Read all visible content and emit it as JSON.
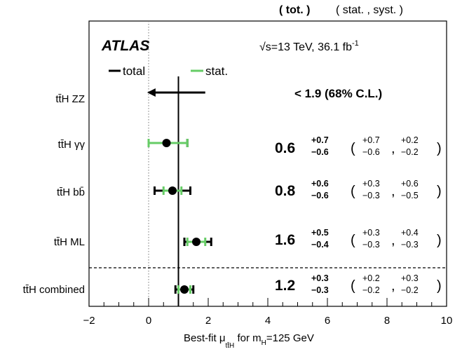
{
  "chart_data": {
    "type": "scatter",
    "header": {
      "tot_label": "( tot. )",
      "stat_syst_label": "( stat. , syst. )"
    },
    "experiment": "ATLAS",
    "energy_label": "√s=13 TeV, 36.1 fb",
    "lumi_exponent": "-1",
    "legend": {
      "total": "total",
      "stat": "stat."
    },
    "xlabel": "Best-fit μ",
    "xlabel_sub": "tt̄H",
    "xlabel_suffix": " for m",
    "xlabel_mh_sub": "H",
    "xlabel_end": "=125 GeV",
    "xlim": [
      -2,
      10
    ],
    "xticks": [
      "−2",
      "0",
      "2",
      "4",
      "6",
      "8",
      "10"
    ],
    "xtick_values": [
      -2,
      0,
      2,
      4,
      6,
      8,
      10
    ],
    "sm_reference": 1,
    "zero_reference": 0,
    "colors": {
      "total": "#000000",
      "stat": "#66cc66",
      "point": "#000000"
    },
    "channels": [
      {
        "label": "tt̄H ZZ",
        "limit": true,
        "limit_text": "< 1.9 (68% C.L.)",
        "limit_value": 1.9
      },
      {
        "label": "tt̄H γγ",
        "value": 0.6,
        "value_text": "0.6",
        "tot_up": 0.7,
        "tot_dn": 0.6,
        "stat_up": 0.7,
        "stat_dn": 0.6,
        "syst_up": 0.2,
        "syst_dn": 0.2,
        "tot_up_text": "+0.7",
        "tot_dn_text": "−0.6",
        "stat_up_text": "+0.7",
        "stat_dn_text": "−0.6",
        "syst_up_text": "+0.2",
        "syst_dn_text": "−0.2"
      },
      {
        "label": "tt̄H bb̄",
        "value": 0.8,
        "value_text": "0.8",
        "tot_up": 0.6,
        "tot_dn": 0.6,
        "stat_up": 0.3,
        "stat_dn": 0.3,
        "syst_up": 0.6,
        "syst_dn": 0.5,
        "tot_up_text": "+0.6",
        "tot_dn_text": "−0.6",
        "stat_up_text": "+0.3",
        "stat_dn_text": "−0.3",
        "syst_up_text": "+0.6",
        "syst_dn_text": "−0.5"
      },
      {
        "label": "tt̄H ML",
        "value": 1.6,
        "value_text": "1.6",
        "tot_up": 0.5,
        "tot_dn": 0.4,
        "stat_up": 0.3,
        "stat_dn": 0.3,
        "syst_up": 0.4,
        "syst_dn": 0.3,
        "tot_up_text": "+0.5",
        "tot_dn_text": "−0.4",
        "stat_up_text": "+0.3",
        "stat_dn_text": "−0.3",
        "syst_up_text": "+0.4",
        "syst_dn_text": "−0.3"
      },
      {
        "label": "tt̄H combined",
        "value": 1.2,
        "value_text": "1.2",
        "tot_up": 0.3,
        "tot_dn": 0.3,
        "stat_up": 0.2,
        "stat_dn": 0.2,
        "syst_up": 0.3,
        "syst_dn": 0.2,
        "tot_up_text": "+0.3",
        "tot_dn_text": "−0.3",
        "stat_up_text": "+0.2",
        "stat_dn_text": "−0.2",
        "syst_up_text": "+0.3",
        "syst_dn_text": "−0.2"
      }
    ]
  }
}
